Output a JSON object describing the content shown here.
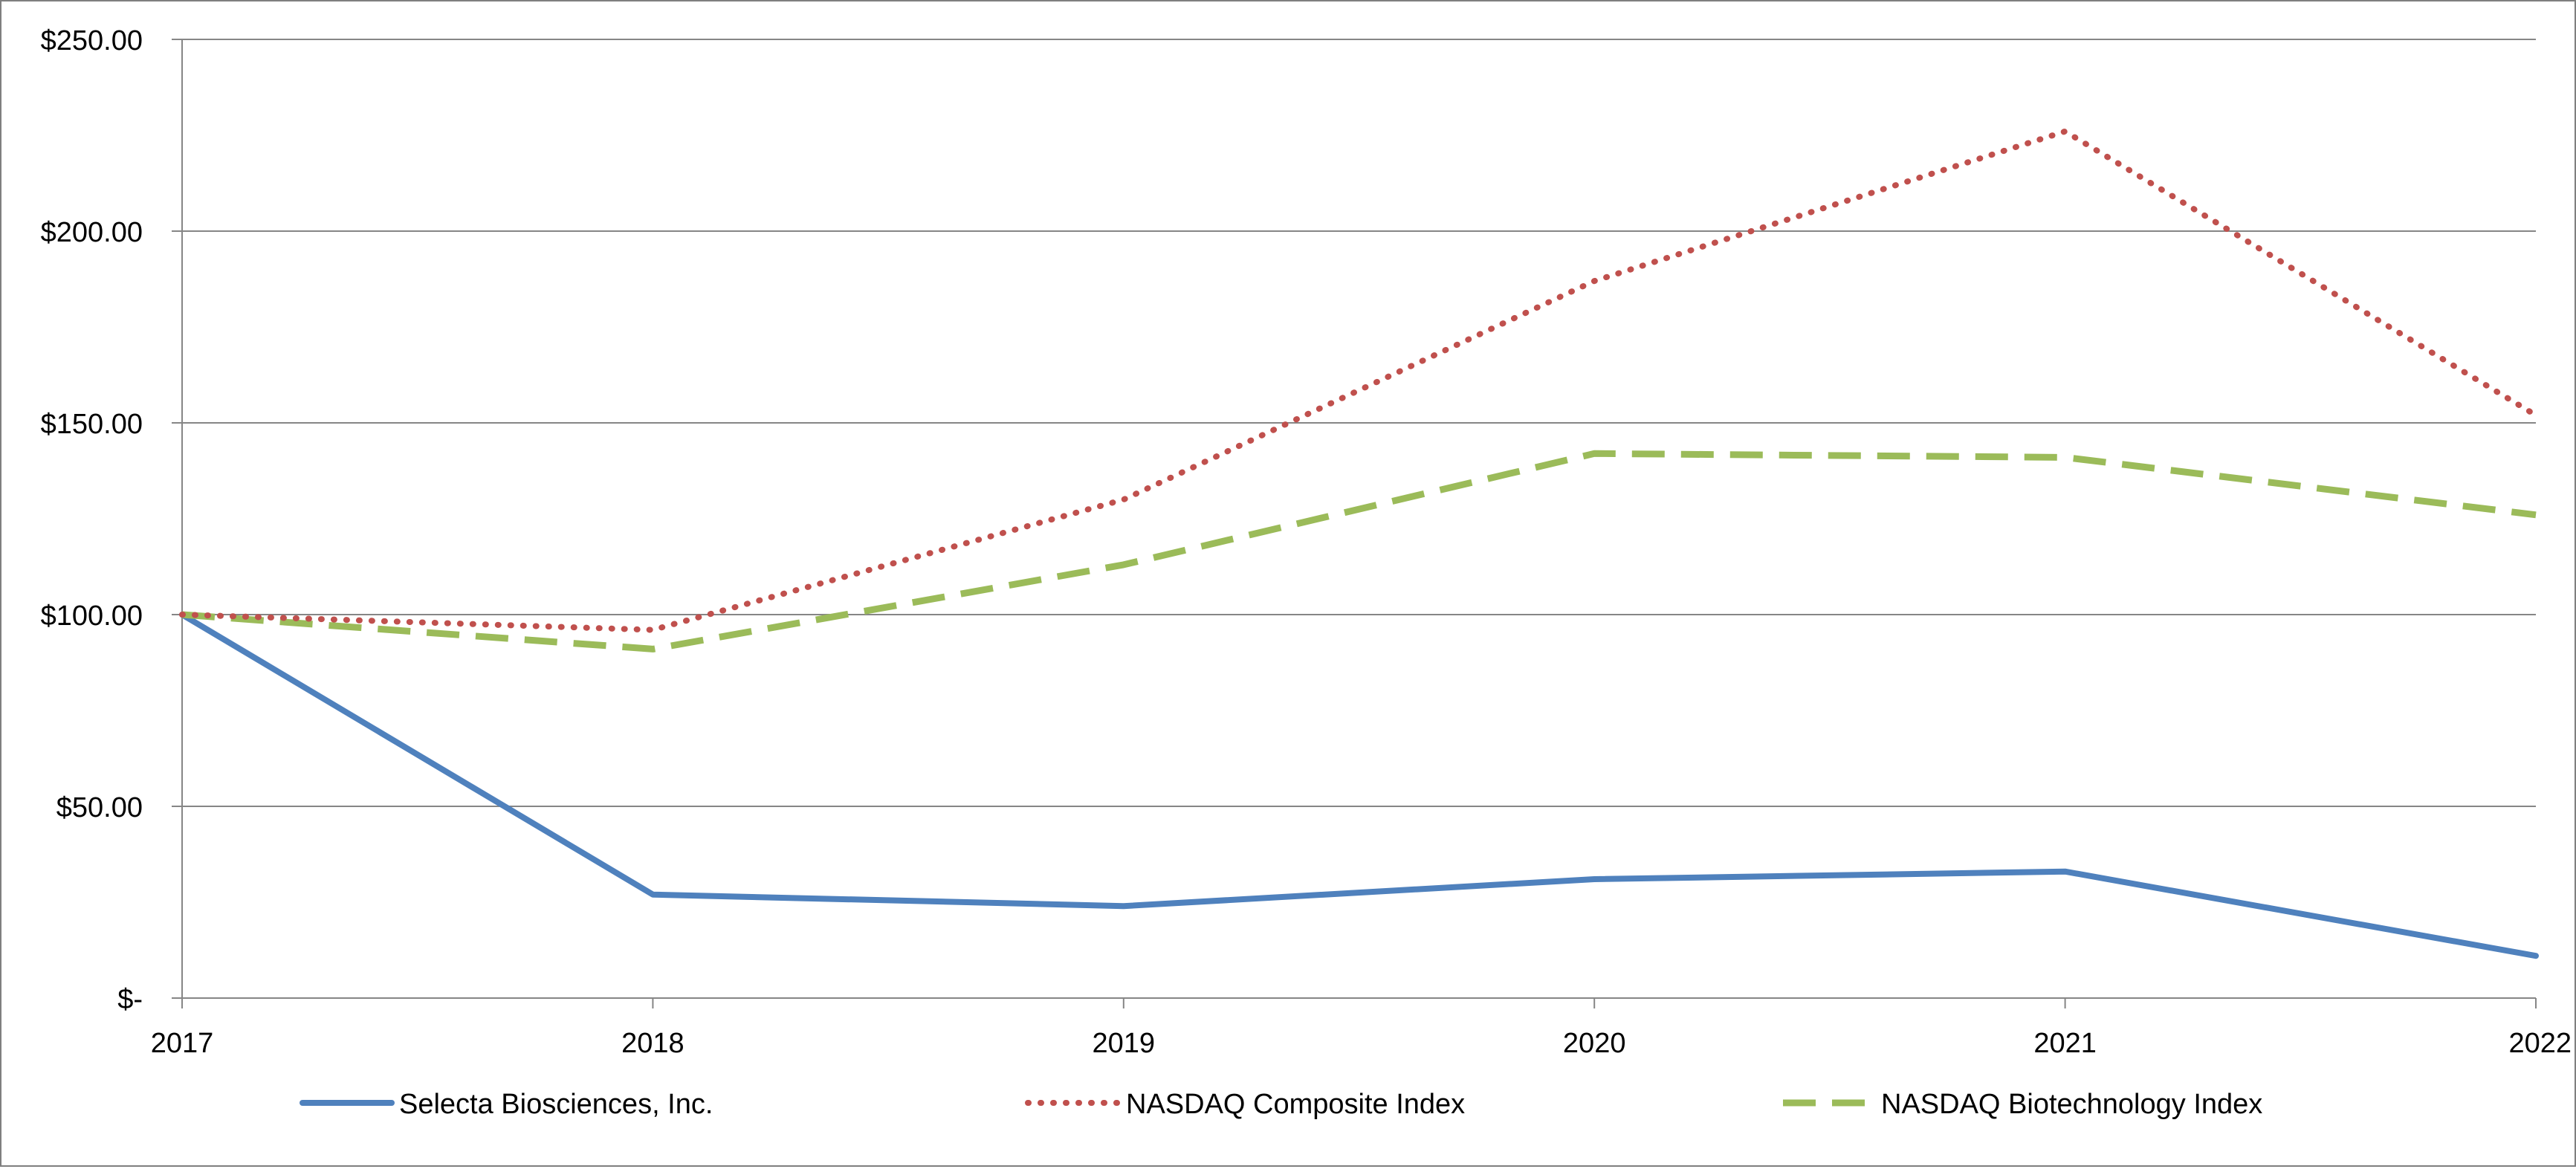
{
  "chart_data": {
    "type": "line",
    "title": "",
    "xlabel": "",
    "ylabel": "",
    "x": [
      "2017",
      "2018",
      "2019",
      "2020",
      "2021",
      "2022"
    ],
    "ylim": [
      0,
      250
    ],
    "y_tick_values": [
      0,
      50,
      100,
      150,
      200,
      250
    ],
    "y_tick_labels": [
      "$-",
      "$50.00",
      "$100.00",
      "$150.00",
      "$200.00",
      "$250.00"
    ],
    "grid": "horizontal",
    "legend_position": "bottom",
    "series": [
      {
        "name": "Selecta Biosciences, Inc.",
        "values": [
          100,
          27,
          24,
          31,
          33,
          11
        ],
        "color": "#4f81bd",
        "style": "solid"
      },
      {
        "name": "NASDAQ Composite Index",
        "values": [
          100,
          96,
          130,
          187,
          226,
          152
        ],
        "color": "#c0504d",
        "style": "dotted"
      },
      {
        "name": "NASDAQ Biotechnology Index",
        "values": [
          100,
          91,
          113,
          142,
          141,
          126
        ],
        "color": "#9bbb59",
        "style": "dashed"
      }
    ]
  }
}
